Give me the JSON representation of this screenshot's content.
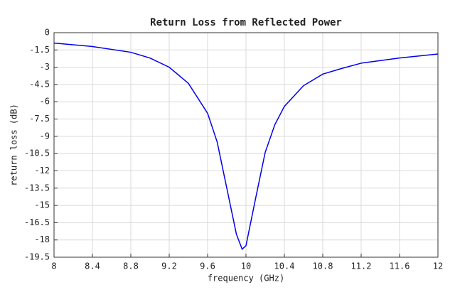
{
  "chart_data": {
    "type": "line",
    "title": "Return Loss from Reflected Power",
    "x_label": "frequency (GHz)",
    "y_label": "return loss (dB)",
    "x": [
      8.0,
      8.4,
      8.8,
      9.0,
      9.2,
      9.4,
      9.6,
      9.7,
      9.8,
      9.9,
      9.96,
      10.0,
      10.1,
      10.2,
      10.3,
      10.4,
      10.6,
      10.8,
      11.0,
      11.2,
      11.6,
      12.0
    ],
    "series": [
      {
        "name": "return loss",
        "color": "#0000ee",
        "values": [
          -0.9,
          -1.2,
          -1.7,
          -2.2,
          -3.0,
          -4.4,
          -7.0,
          -9.5,
          -13.5,
          -17.5,
          -18.8,
          -18.5,
          -14.4,
          -10.4,
          -8.0,
          -6.4,
          -4.6,
          -3.6,
          -3.1,
          -2.65,
          -2.2,
          -1.85
        ]
      }
    ],
    "xlim": [
      8,
      12
    ],
    "xticks": [
      8,
      8.4,
      8.8,
      9.2,
      9.6,
      10,
      10.4,
      10.8,
      11.2,
      11.6,
      12
    ],
    "ylim": [
      -19.5,
      0
    ],
    "yticks": [
      0,
      -1.5,
      -3,
      -4.5,
      -6,
      -7.5,
      -9,
      -10.5,
      -12,
      -13.5,
      -15,
      -16.5,
      -18,
      -19.5
    ],
    "grid": true
  }
}
